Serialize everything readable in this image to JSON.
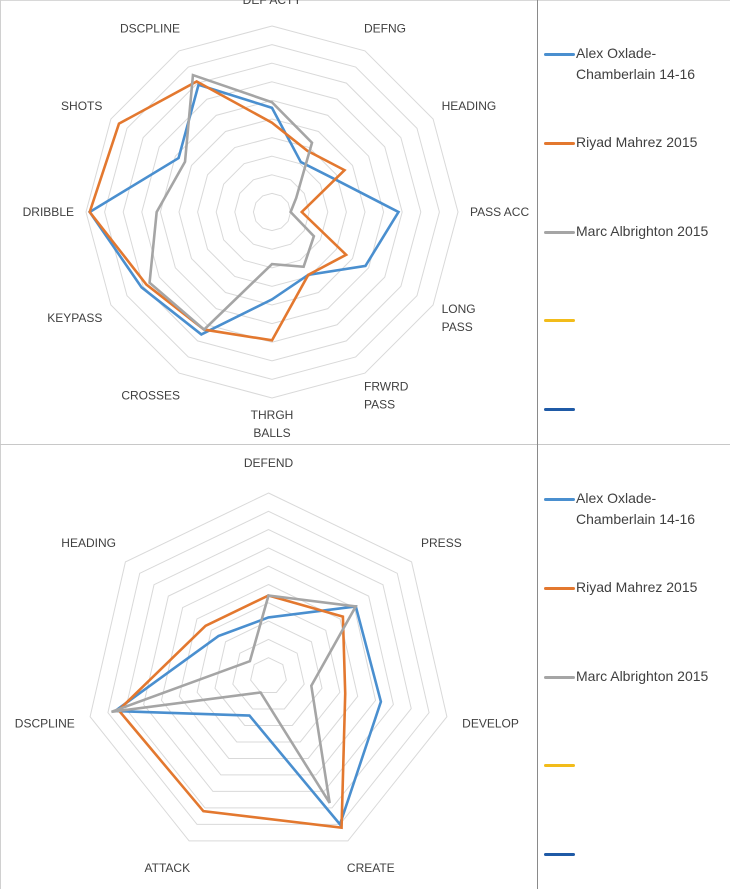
{
  "series_colors": {
    "Alex Oxlade-Chamberlain 14-16": "#4a8fcf",
    "Riyad Mahrez 2015": "#e3782f",
    "Marc Albrighton 2015": "#a5a5a5"
  },
  "legend": [
    {
      "label": "Alex Oxlade-\nChamberlain 14-16",
      "color": "#4a8fcf"
    },
    {
      "label": "Riyad Mahrez 2015",
      "color": "#e3782f"
    },
    {
      "label": "Marc Albrighton 2015",
      "color": "#a5a5a5"
    },
    {
      "label": "",
      "color": "#f2bc1a"
    },
    {
      "label": "",
      "color": "#1f5aa6"
    }
  ],
  "chart_data": [
    {
      "type": "radar",
      "title": "",
      "categories": [
        "DEF ACTY",
        "DEFNG",
        "HEADING",
        "PASS ACC",
        "LONG PASS",
        "FRWRD PASS",
        "THRGH BALLS",
        "CROSSES",
        "KEYPASS",
        "DRIBBLE",
        "SHOTS",
        "DSCPLINE"
      ],
      "category_display": [
        "DEF ACTY",
        "DEFNG",
        "HEADING",
        "PASS ACC",
        "LONG\nPASS",
        "FRWRD\nPASS",
        "THRGH\nBALLS",
        "CROSSES",
        "KEYPASS",
        "DRIBBLE",
        "SHOTS",
        "DSCPLINE"
      ],
      "range": [
        0,
        10
      ],
      "gridlines": 10,
      "grid": true,
      "legend_position": "right",
      "series": [
        {
          "name": "Alex Oxlade-Chamberlain 14-16",
          "color": "#4a8fcf",
          "values": [
            5.6,
            3.1,
            3.7,
            6.8,
            5.8,
            3.9,
            4.7,
            7.6,
            8.1,
            9.8,
            5.8,
            7.9
          ]
        },
        {
          "name": "Riyad Mahrez 2015",
          "color": "#e3782f",
          "values": [
            4.8,
            3.8,
            4.5,
            1.6,
            4.6,
            3.9,
            6.9,
            7.3,
            7.8,
            9.8,
            9.5,
            8.1
          ]
        },
        {
          "name": "Marc Albrighton 2015",
          "color": "#a5a5a5",
          "values": [
            5.9,
            4.3,
            1.5,
            1.0,
            2.6,
            3.4,
            2.8,
            7.3,
            7.6,
            6.2,
            5.4,
            8.5
          ]
        }
      ]
    },
    {
      "type": "radar",
      "title": "",
      "categories": [
        "DEFEND",
        "PRESS",
        "DEVELOP",
        "CREATE",
        "ATTACK",
        "DSCPLINE",
        "HEADING"
      ],
      "category_display": [
        "DEFEND",
        "PRESS",
        "DEVELOP",
        "CREATE",
        "ATTACK",
        "DSCPLINE",
        "HEADING"
      ],
      "range": [
        0,
        10
      ],
      "gridlines": 10,
      "grid": true,
      "legend_position": "right",
      "series": [
        {
          "name": "Alex Oxlade-Chamberlain 14-16",
          "color": "#4a8fcf",
          "values": [
            3.2,
            6.1,
            6.3,
            9.0,
            2.4,
            8.6,
            3.5
          ]
        },
        {
          "name": "Riyad Mahrez 2015",
          "color": "#e3782f",
          "values": [
            4.4,
            5.2,
            4.3,
            9.2,
            8.2,
            8.4,
            4.4
          ]
        },
        {
          "name": "Marc Albrighton 2015",
          "color": "#a5a5a5",
          "values": [
            4.4,
            6.1,
            2.4,
            7.7,
            1.0,
            8.8,
            1.3
          ]
        }
      ]
    }
  ]
}
